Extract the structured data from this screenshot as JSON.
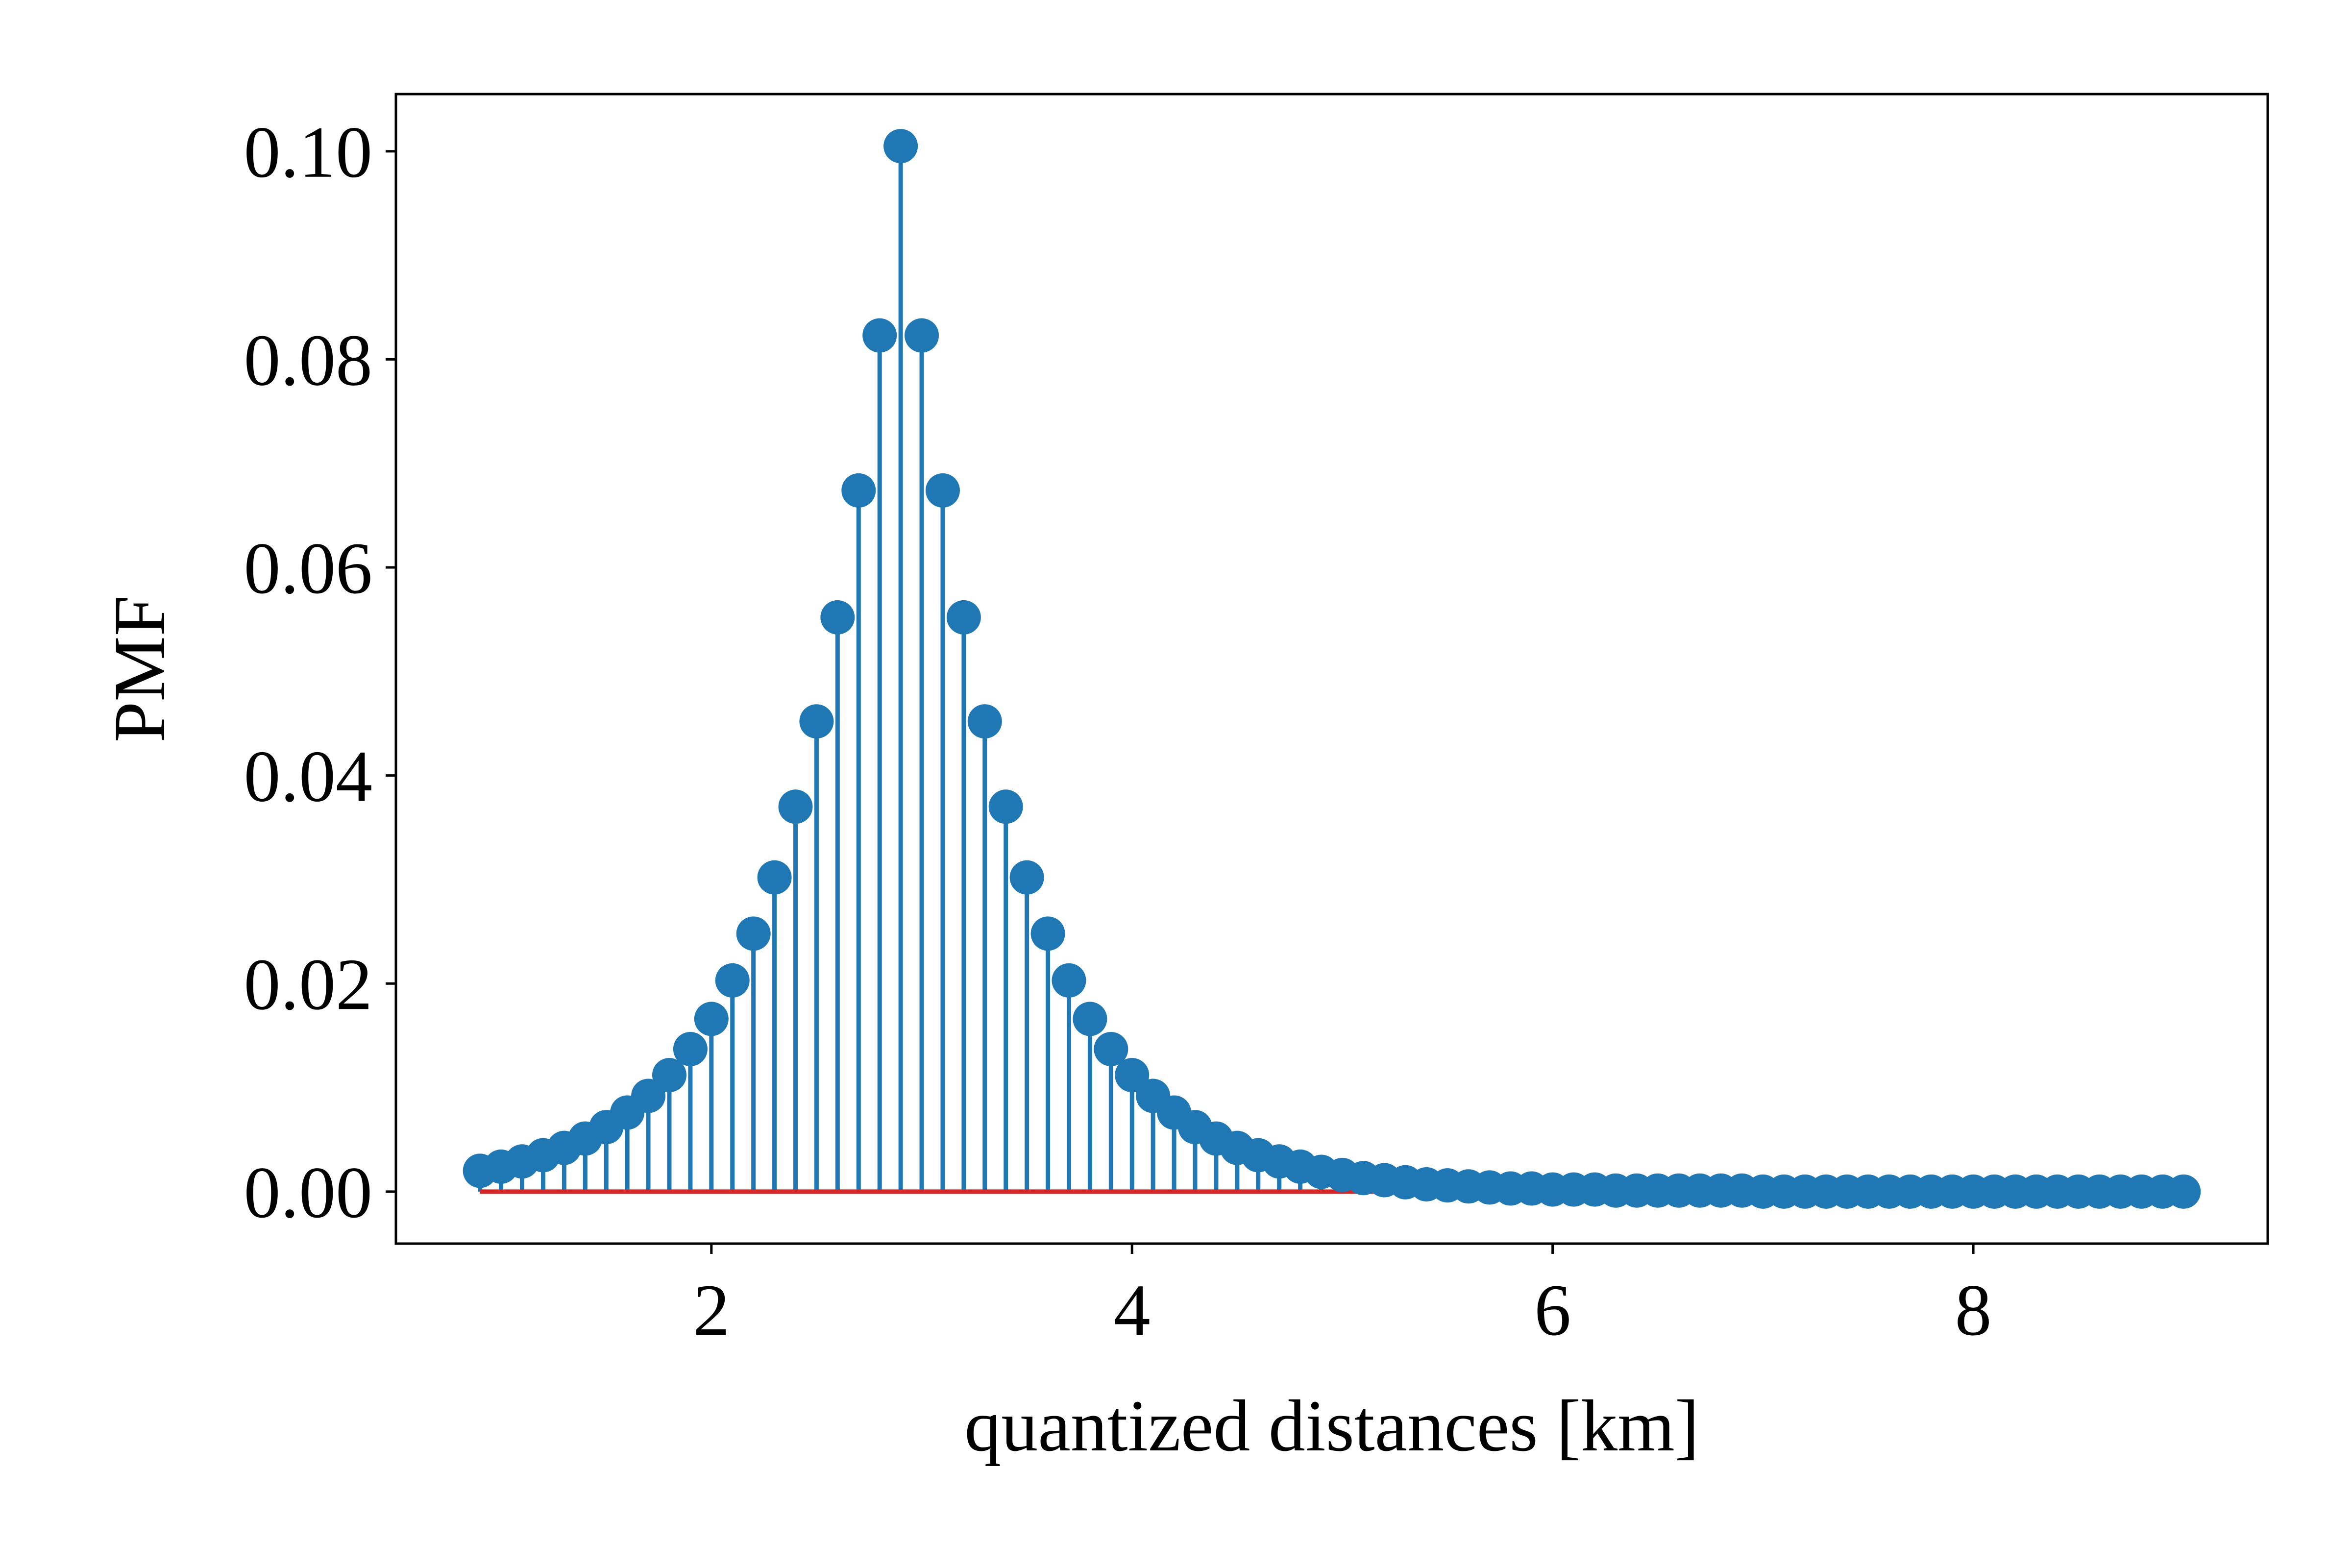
{
  "chart_data": {
    "type": "stem",
    "title": "",
    "xlabel": "quantized distances [km]",
    "ylabel": "PMF",
    "xlim": [
      0.5,
      9.4
    ],
    "ylim": [
      -0.005,
      0.1055
    ],
    "xticks": [
      2,
      4,
      6,
      8
    ],
    "yticks": [
      0.0,
      0.02,
      0.04,
      0.06,
      0.08,
      0.1
    ],
    "xtick_labels": [
      "2",
      "4",
      "6",
      "8"
    ],
    "ytick_labels": [
      "0.00",
      "0.02",
      "0.04",
      "0.06",
      "0.08",
      "0.10"
    ],
    "grid": false,
    "legend": "none",
    "baseline": 0,
    "colors": {
      "stem": "#1f77b4",
      "baseline": "#d62728",
      "axes": "#000000"
    },
    "x": [
      0.9,
      1.0,
      1.1,
      1.2,
      1.3,
      1.4,
      1.5,
      1.6,
      1.7,
      1.8,
      1.9,
      2.0,
      2.1,
      2.2,
      2.3,
      2.4,
      2.5,
      2.6,
      2.7,
      2.8,
      2.9,
      3.0,
      3.1,
      3.2,
      3.3,
      3.4,
      3.5,
      3.6,
      3.7,
      3.8,
      3.9,
      4.0,
      4.1,
      4.2,
      4.3,
      4.4,
      4.5,
      4.6,
      4.7,
      4.8,
      4.9,
      5.0,
      5.1,
      5.2,
      5.3,
      5.4,
      5.5,
      5.6,
      5.7,
      5.8,
      5.9,
      6.0,
      6.1,
      6.2,
      6.3,
      6.4,
      6.5,
      6.6,
      6.7,
      6.8,
      6.9,
      7.0,
      7.1,
      7.2,
      7.3,
      7.4,
      7.5,
      7.6,
      7.7,
      7.8,
      7.9,
      8.0,
      8.1,
      8.2,
      8.3,
      8.4,
      8.5,
      8.6,
      8.7,
      8.8,
      8.9,
      9.0
    ],
    "values": [
      0.002,
      0.0024,
      0.0029,
      0.0035,
      0.0042,
      0.0051,
      0.0062,
      0.0076,
      0.0092,
      0.0112,
      0.0137,
      0.0166,
      0.0203,
      0.0248,
      0.0302,
      0.037,
      0.0452,
      0.0552,
      0.0674,
      0.0823,
      0.1005,
      0.0823,
      0.0674,
      0.0552,
      0.0452,
      0.037,
      0.0302,
      0.0248,
      0.0203,
      0.0166,
      0.0137,
      0.0112,
      0.0092,
      0.0076,
      0.0062,
      0.0051,
      0.0042,
      0.0035,
      0.0029,
      0.0024,
      0.0019,
      0.0016,
      0.0013,
      0.0011,
      0.0009,
      0.0007,
      0.0006,
      0.0005,
      0.0004,
      0.0003,
      0.0003,
      0.0002,
      0.0002,
      0.0002,
      0.0001,
      0.0001,
      0.0001,
      0.0001,
      0.0001,
      0.0001,
      0.0001,
      0.0,
      0.0,
      0.0,
      0.0,
      0.0,
      0.0,
      0.0,
      0.0,
      0.0,
      0.0,
      0.0,
      0.0,
      0.0,
      0.0,
      0.0,
      0.0,
      0.0,
      0.0,
      0.0,
      0.0,
      0.0
    ]
  }
}
